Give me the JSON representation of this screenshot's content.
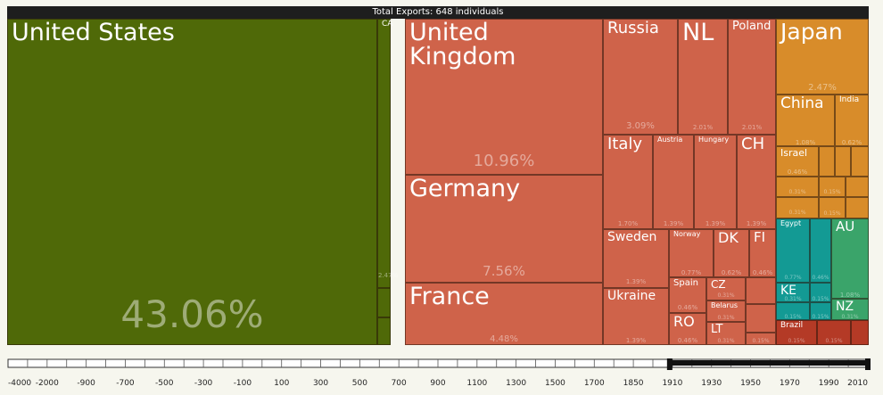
{
  "chart_data": {
    "type": "treemap",
    "title": "Total Exports: 648 individuals",
    "colors": {
      "north_america": "#4f6908",
      "europe": "#cf634a",
      "asia": "#d88c2a",
      "africa": "#139a94",
      "oceania": "#3aa46a",
      "south_america": "#b43a26"
    },
    "tiles": [
      {
        "label": "United States",
        "value": 43.06,
        "pct_label": "43.06%",
        "region": "north_america"
      },
      {
        "label": "CA",
        "value": 2.47,
        "pct_label": "2.47%",
        "region": "north_america"
      },
      {
        "label": "",
        "value": 0.3,
        "pct_label": "",
        "region": "north_america"
      },
      {
        "label": "",
        "value": 0.3,
        "pct_label": "",
        "region": "north_america"
      },
      {
        "label": "United\nKingdom",
        "value": 10.96,
        "pct_label": "10.96%",
        "region": "europe"
      },
      {
        "label": "Germany",
        "value": 7.56,
        "pct_label": "7.56%",
        "region": "europe"
      },
      {
        "label": "France",
        "value": 4.48,
        "pct_label": "4.48%",
        "region": "europe"
      },
      {
        "label": "Russia",
        "value": 3.09,
        "pct_label": "3.09%",
        "region": "europe"
      },
      {
        "label": "NL",
        "value": 2.01,
        "pct_label": "2.01%",
        "region": "europe"
      },
      {
        "label": "Poland",
        "value": 2.01,
        "pct_label": "2.01%",
        "region": "europe"
      },
      {
        "label": "Italy",
        "value": 1.7,
        "pct_label": "1.70%",
        "region": "europe"
      },
      {
        "label": "Austria",
        "value": 1.39,
        "pct_label": "1.39%",
        "region": "europe"
      },
      {
        "label": "Hungary",
        "value": 1.39,
        "pct_label": "1.39%",
        "region": "europe"
      },
      {
        "label": "CH",
        "value": 1.39,
        "pct_label": "1.39%",
        "region": "europe"
      },
      {
        "label": "Sweden",
        "value": 1.39,
        "pct_label": "1.39%",
        "region": "europe"
      },
      {
        "label": "Norway",
        "value": 0.77,
        "pct_label": "0.77%",
        "region": "europe"
      },
      {
        "label": "DK",
        "value": 0.62,
        "pct_label": "0.62%",
        "region": "europe"
      },
      {
        "label": "FI",
        "value": 0.46,
        "pct_label": "0.46%",
        "region": "europe"
      },
      {
        "label": "Ukraine",
        "value": 1.39,
        "pct_label": "1.39%",
        "region": "europe"
      },
      {
        "label": "Spain",
        "value": 0.46,
        "pct_label": "0.46%",
        "region": "europe"
      },
      {
        "label": "CZ",
        "value": 0.31,
        "pct_label": "0.31%",
        "region": "europe"
      },
      {
        "label": "Belarus",
        "value": 0.31,
        "pct_label": "0.31%",
        "region": "europe"
      },
      {
        "label": "RO",
        "value": 0.46,
        "pct_label": "0.46%",
        "region": "europe"
      },
      {
        "label": "LT",
        "value": 0.31,
        "pct_label": "0.31%",
        "region": "europe"
      },
      {
        "label": "",
        "value": 0.15,
        "pct_label": "",
        "region": "europe"
      },
      {
        "label": "",
        "value": 0.15,
        "pct_label": "",
        "region": "europe"
      },
      {
        "label": "",
        "value": 0.15,
        "pct_label": "0.15%",
        "region": "europe"
      },
      {
        "label": "Japan",
        "value": 2.47,
        "pct_label": "2.47%",
        "region": "asia"
      },
      {
        "label": "China",
        "value": 1.08,
        "pct_label": "1.08%",
        "region": "asia"
      },
      {
        "label": "India",
        "value": 0.62,
        "pct_label": "0.62%",
        "region": "asia"
      },
      {
        "label": "Israel",
        "value": 0.46,
        "pct_label": "0.46%",
        "region": "asia"
      },
      {
        "label": "",
        "value": 0.15,
        "pct_label": "",
        "region": "asia"
      },
      {
        "label": "",
        "value": 0.15,
        "pct_label": "",
        "region": "asia"
      },
      {
        "label": "",
        "value": 0.15,
        "pct_label": "",
        "region": "asia"
      },
      {
        "label": "",
        "value": 0.31,
        "pct_label": "0.31%",
        "region": "asia"
      },
      {
        "label": "",
        "value": 0.15,
        "pct_label": "0.15%",
        "region": "asia"
      },
      {
        "label": "",
        "value": 0.15,
        "pct_label": "",
        "region": "asia"
      },
      {
        "label": "",
        "value": 0.15,
        "pct_label": "0.15%",
        "region": "asia"
      },
      {
        "label": "",
        "value": 0.15,
        "pct_label": "",
        "region": "asia"
      },
      {
        "label": "",
        "value": 0.31,
        "pct_label": "0.31%",
        "region": "asia"
      },
      {
        "label": "",
        "value": 0.15,
        "pct_label": "",
        "region": "asia"
      },
      {
        "label": "Egypt",
        "value": 0.77,
        "pct_label": "0.77%",
        "region": "africa"
      },
      {
        "label": "",
        "value": 0.46,
        "pct_label": "0.46%",
        "region": "africa"
      },
      {
        "label": "KE",
        "value": 0.31,
        "pct_label": "0.31%",
        "region": "africa"
      },
      {
        "label": "",
        "value": 0.15,
        "pct_label": "0.15%",
        "region": "africa"
      },
      {
        "label": "",
        "value": 0.15,
        "pct_label": "0.15%",
        "region": "africa"
      },
      {
        "label": "",
        "value": 0.15,
        "pct_label": "0.15%",
        "region": "africa"
      },
      {
        "label": "AU",
        "value": 1.08,
        "pct_label": "1.08%",
        "region": "oceania"
      },
      {
        "label": "NZ",
        "value": 0.31,
        "pct_label": "0.31%",
        "region": "oceania"
      },
      {
        "label": "Brazil",
        "value": 0.15,
        "pct_label": "0.15%",
        "region": "south_america"
      },
      {
        "label": "",
        "value": 0.15,
        "pct_label": "0.15%",
        "region": "south_america"
      },
      {
        "label": "",
        "value": 0.15,
        "pct_label": "",
        "region": "south_america"
      }
    ]
  },
  "timeline": {
    "ticks": [
      "-4000",
      "-2000",
      "-900",
      "-700",
      "-500",
      "-300",
      "-100",
      "100",
      "300",
      "500",
      "700",
      "900",
      "1100",
      "1300",
      "1500",
      "1700",
      "1850",
      "1910",
      "1930",
      "1950",
      "1970",
      "1990",
      "2010"
    ],
    "selected_range": [
      "1900",
      "2010"
    ]
  }
}
